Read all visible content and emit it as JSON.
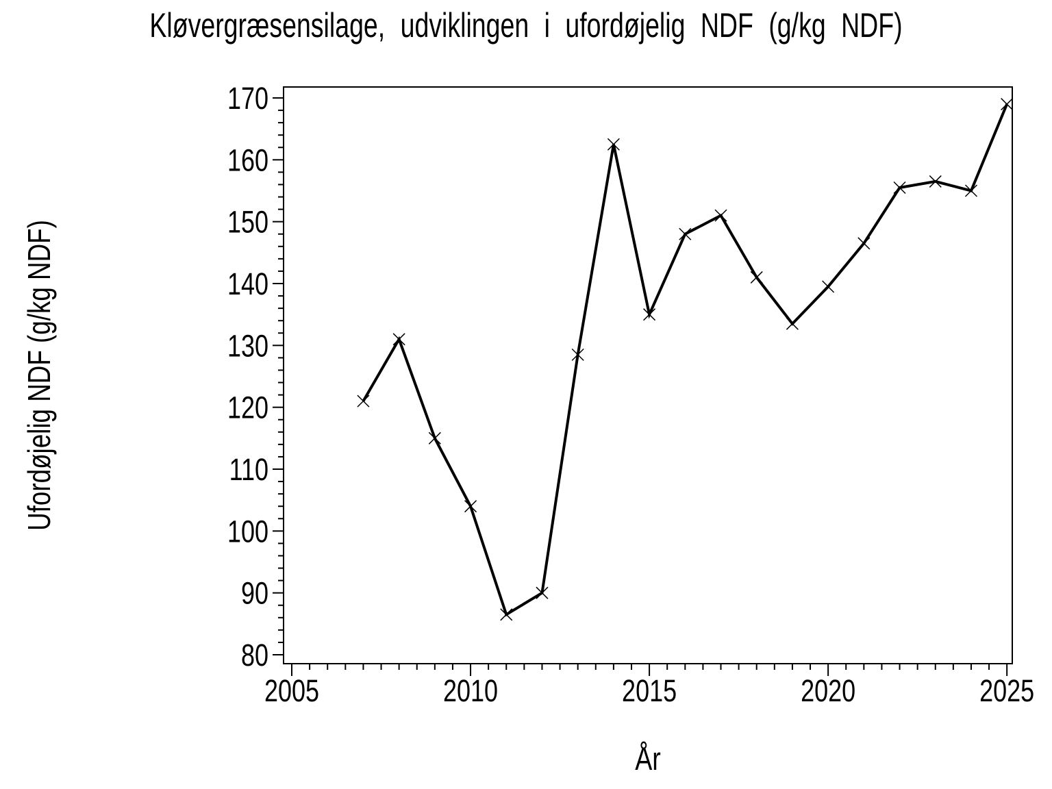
{
  "page": {
    "background_color": "#ffffff",
    "foreground_color": "#000000"
  },
  "chart_data": {
    "type": "line",
    "title": "Kløvergræsensilage, udviklingen i ufordøjelig NDF (g/kg NDF)",
    "xlabel": "År",
    "ylabel": "Ufordøjelig NDF (g/kg NDF)",
    "series": [
      {
        "name": "Ufordøjelig NDF",
        "x": [
          2007,
          2008,
          2009,
          2010,
          2011,
          2012,
          2013,
          2014,
          2015,
          2016,
          2017,
          2018,
          2019,
          2020,
          2021,
          2022,
          2023,
          2024,
          2025
        ],
        "values": [
          121,
          131,
          115,
          104,
          86.5,
          90,
          128.5,
          162.5,
          135,
          148,
          151,
          141,
          133.5,
          139.5,
          146.5,
          155.5,
          156.5,
          155,
          169
        ]
      }
    ],
    "xlim": [
      2004.77,
      2025.15
    ],
    "ylim": [
      80,
      170
    ],
    "x_major_ticks": [
      2005,
      2010,
      2015,
      2020,
      2025
    ],
    "x_minor_step": 0.5,
    "y_major_ticks": [
      80,
      90,
      100,
      110,
      120,
      130,
      140,
      150,
      160,
      170
    ],
    "y_minor_step": 2,
    "marker": "x-cross",
    "line_color": "#000000",
    "marker_color": "#000000",
    "background": "#ffffff",
    "grid": false,
    "legend": null,
    "frame": true
  }
}
